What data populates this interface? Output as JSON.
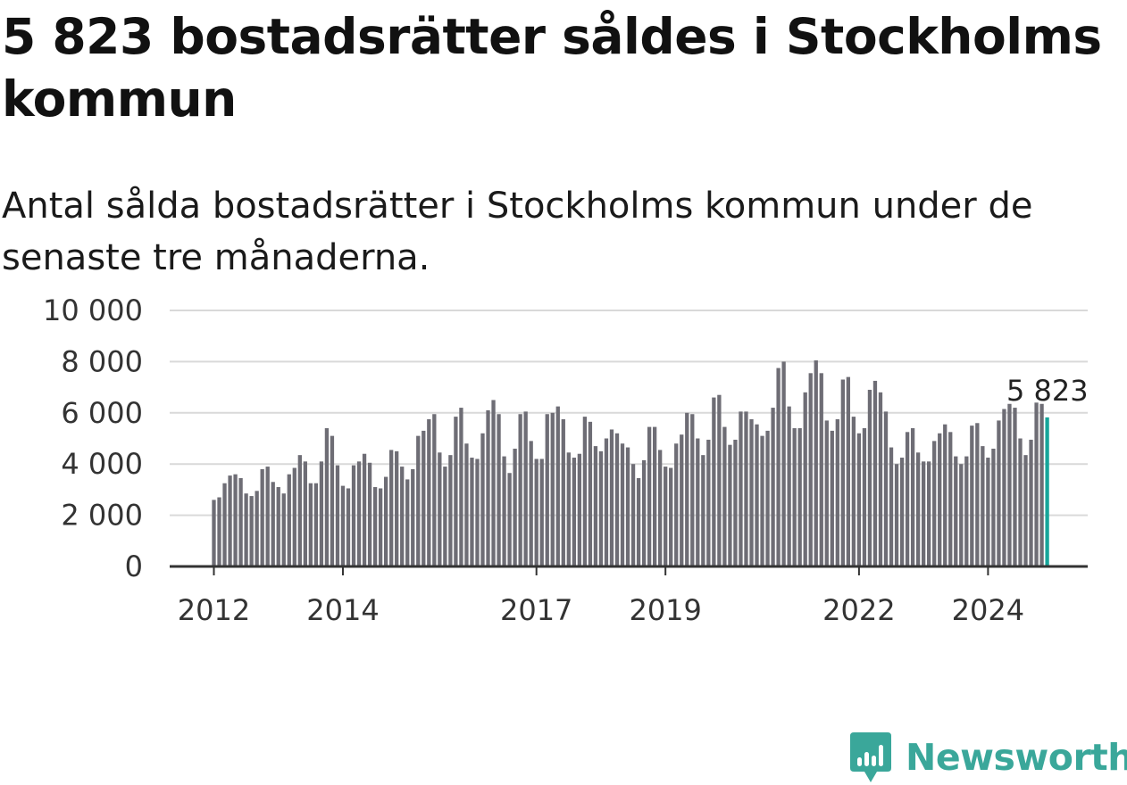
{
  "header": {
    "title": "5 823 bostadsrätter såldes i Stockholms kommun",
    "subtitle": "Antal sålda bostadsrätter i Stockholms kommun under de senaste tre månaderna."
  },
  "brand": {
    "name": "Newsworthy",
    "icon": "newsworthy-logo-icon",
    "color": "#3aa79a"
  },
  "colors": {
    "bar": "#6e6d75",
    "highlight": "#16a59a",
    "grid": "#d9d9d9",
    "axis": "#333333"
  },
  "chart_data": {
    "type": "bar",
    "title": "5 823 bostadsrätter såldes i Stockholms kommun",
    "subtitle": "Antal sålda bostadsrätter i Stockholms kommun under de senaste tre månaderna.",
    "xlabel": "",
    "ylabel": "",
    "ylim": [
      0,
      10000
    ],
    "y_ticks": [
      0,
      2000,
      4000,
      6000,
      8000,
      10000
    ],
    "y_tick_labels": [
      "0",
      "2 000",
      "4 000",
      "6 000",
      "8 000",
      "10 000"
    ],
    "x_range": [
      "2012-01",
      "2024-12"
    ],
    "x_tick_labels": [
      {
        "label": "2012",
        "date": "2012-01"
      },
      {
        "label": "2014",
        "date": "2014-01"
      },
      {
        "label": "2017",
        "date": "2017-01"
      },
      {
        "label": "2019",
        "date": "2019-01"
      },
      {
        "label": "2022",
        "date": "2022-01"
      },
      {
        "label": "2024",
        "date": "2024-01"
      }
    ],
    "grid": true,
    "start": "2012-01",
    "values": [
      2600,
      2700,
      3250,
      3550,
      3600,
      3450,
      2850,
      2750,
      2950,
      3800,
      3900,
      3300,
      3100,
      2850,
      3600,
      3850,
      4350,
      4100,
      3250,
      3250,
      4100,
      5400,
      5100,
      3950,
      3150,
      3050,
      3950,
      4100,
      4400,
      4050,
      3100,
      3050,
      3500,
      4550,
      4500,
      3900,
      3400,
      3800,
      5100,
      5300,
      5750,
      5950,
      4450,
      3900,
      4350,
      5850,
      6200,
      4800,
      4250,
      4200,
      5200,
      6100,
      6500,
      5950,
      4300,
      3650,
      4600,
      5950,
      6050,
      4900,
      4200,
      4200,
      5950,
      6000,
      6250,
      5750,
      4450,
      4250,
      4400,
      5850,
      5650,
      4700,
      4500,
      5000,
      5350,
      5200,
      4800,
      4650,
      4000,
      3450,
      4150,
      5450,
      5450,
      4550,
      3900,
      3850,
      4800,
      5150,
      6000,
      5950,
      5000,
      4350,
      4950,
      6600,
      6700,
      5450,
      4750,
      4950,
      6050,
      6050,
      5750,
      5550,
      5100,
      5300,
      6200,
      7750,
      8000,
      6250,
      5400,
      5400,
      6800,
      7550,
      8050,
      7550,
      5700,
      5300,
      5750,
      7300,
      7400,
      5850,
      5200,
      5400,
      6900,
      7250,
      6800,
      6050,
      4650,
      4000,
      4250,
      5250,
      5400,
      4450,
      4100,
      4100,
      4900,
      5200,
      5550,
      5250,
      4300,
      4000,
      4300,
      5500,
      5600,
      4700,
      4250,
      4600,
      5700,
      6150,
      6350,
      6200,
      5000,
      4350,
      4950,
      6400,
      6350,
      5823
    ],
    "highlight": {
      "index": 155,
      "value": 5823,
      "label": "5 823"
    }
  }
}
